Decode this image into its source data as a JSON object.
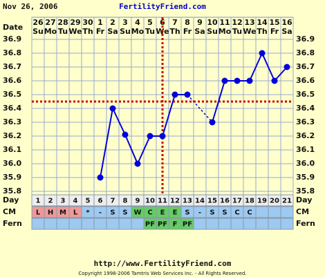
{
  "header": {
    "date": "Nov 26, 2006",
    "site": "FertilityFriend.com"
  },
  "chart_data": {
    "type": "line",
    "date_label": "Date",
    "dates": [
      "26",
      "27",
      "28",
      "29",
      "30",
      "1",
      "2",
      "3",
      "4",
      "5",
      "6",
      "7",
      "8",
      "9",
      "10",
      "11",
      "12",
      "13",
      "14",
      "15",
      "16"
    ],
    "weekdays": [
      "Su",
      "Mo",
      "Tu",
      "We",
      "Th",
      "Fr",
      "Sa",
      "Su",
      "Mo",
      "Tu",
      "We",
      "Th",
      "Fr",
      "Sa",
      "Su",
      "Mo",
      "Tu",
      "We",
      "Th",
      "Fr",
      "Sa"
    ],
    "day_label": "Day",
    "categories": [
      "1",
      "2",
      "3",
      "4",
      "5",
      "6",
      "7",
      "8",
      "9",
      "10",
      "11",
      "12",
      "13",
      "14",
      "15",
      "16",
      "17",
      "18",
      "19",
      "20",
      "21"
    ],
    "series": [
      {
        "name": "Temperature",
        "color": "#0000dd",
        "values": [
          null,
          null,
          null,
          null,
          null,
          35.9,
          36.4,
          36.21,
          36.0,
          36.2,
          36.2,
          36.5,
          36.5,
          null,
          36.3,
          36.6,
          36.6,
          36.6,
          36.8,
          36.6,
          36.7
        ]
      }
    ],
    "ylim": [
      35.8,
      36.9
    ],
    "yticks": [
      35.8,
      35.9,
      {
        "value": 36,
        "label": "36.0"
      },
      36.1,
      36.2,
      36.3,
      36.4,
      36.5,
      36.6,
      36.7,
      36.8,
      36.9
    ],
    "coverline": 36.45,
    "coverline_color": "#cc0000",
    "ovulation_day": "11",
    "grid": true,
    "cm_label": "CM",
    "cm": [
      "L",
      "H",
      "M",
      "L",
      "*",
      "-",
      "S",
      "S",
      "W",
      "C",
      "E",
      "E",
      "S",
      "-",
      "S",
      "S",
      "C",
      "C",
      null,
      null,
      null
    ],
    "cm_colors": [
      "#ee9999",
      "#ee9999",
      "#ee9999",
      "#ee9999",
      "#9ec9f0",
      "#9ec9f0",
      "#9ec9f0",
      "#9ec9f0",
      "#66cc66",
      "#66cc66",
      "#66cc66",
      "#66cc66",
      "#9ec9f0",
      "#9ec9f0",
      "#9ec9f0",
      "#9ec9f0",
      "#9ec9f0",
      "#9ec9f0",
      "#9ec9f0",
      "#9ec9f0",
      "#9ec9f0"
    ],
    "fern_label": "Fern",
    "fern": [
      null,
      null,
      null,
      null,
      null,
      null,
      null,
      null,
      null,
      "PF",
      "PF",
      "F",
      "PF",
      null,
      null,
      null,
      null,
      null,
      null,
      null,
      null
    ],
    "fern_colors": [
      "#9ec9f0",
      "#9ec9f0",
      "#9ec9f0",
      "#9ec9f0",
      "#9ec9f0",
      "#9ec9f0",
      "#9ec9f0",
      "#9ec9f0",
      "#9ec9f0",
      "#66cc66",
      "#66cc66",
      "#66cc66",
      "#66cc66",
      "#9ec9f0",
      "#9ec9f0",
      "#9ec9f0",
      "#9ec9f0",
      "#9ec9f0",
      "#9ec9f0",
      "#9ec9f0",
      "#9ec9f0"
    ]
  },
  "footer": {
    "url": "http://www.FertilityFriend.com",
    "copyright": "Copyright 1998-2006 Tamtris Web Services Inc. - All Rights Reserved."
  }
}
